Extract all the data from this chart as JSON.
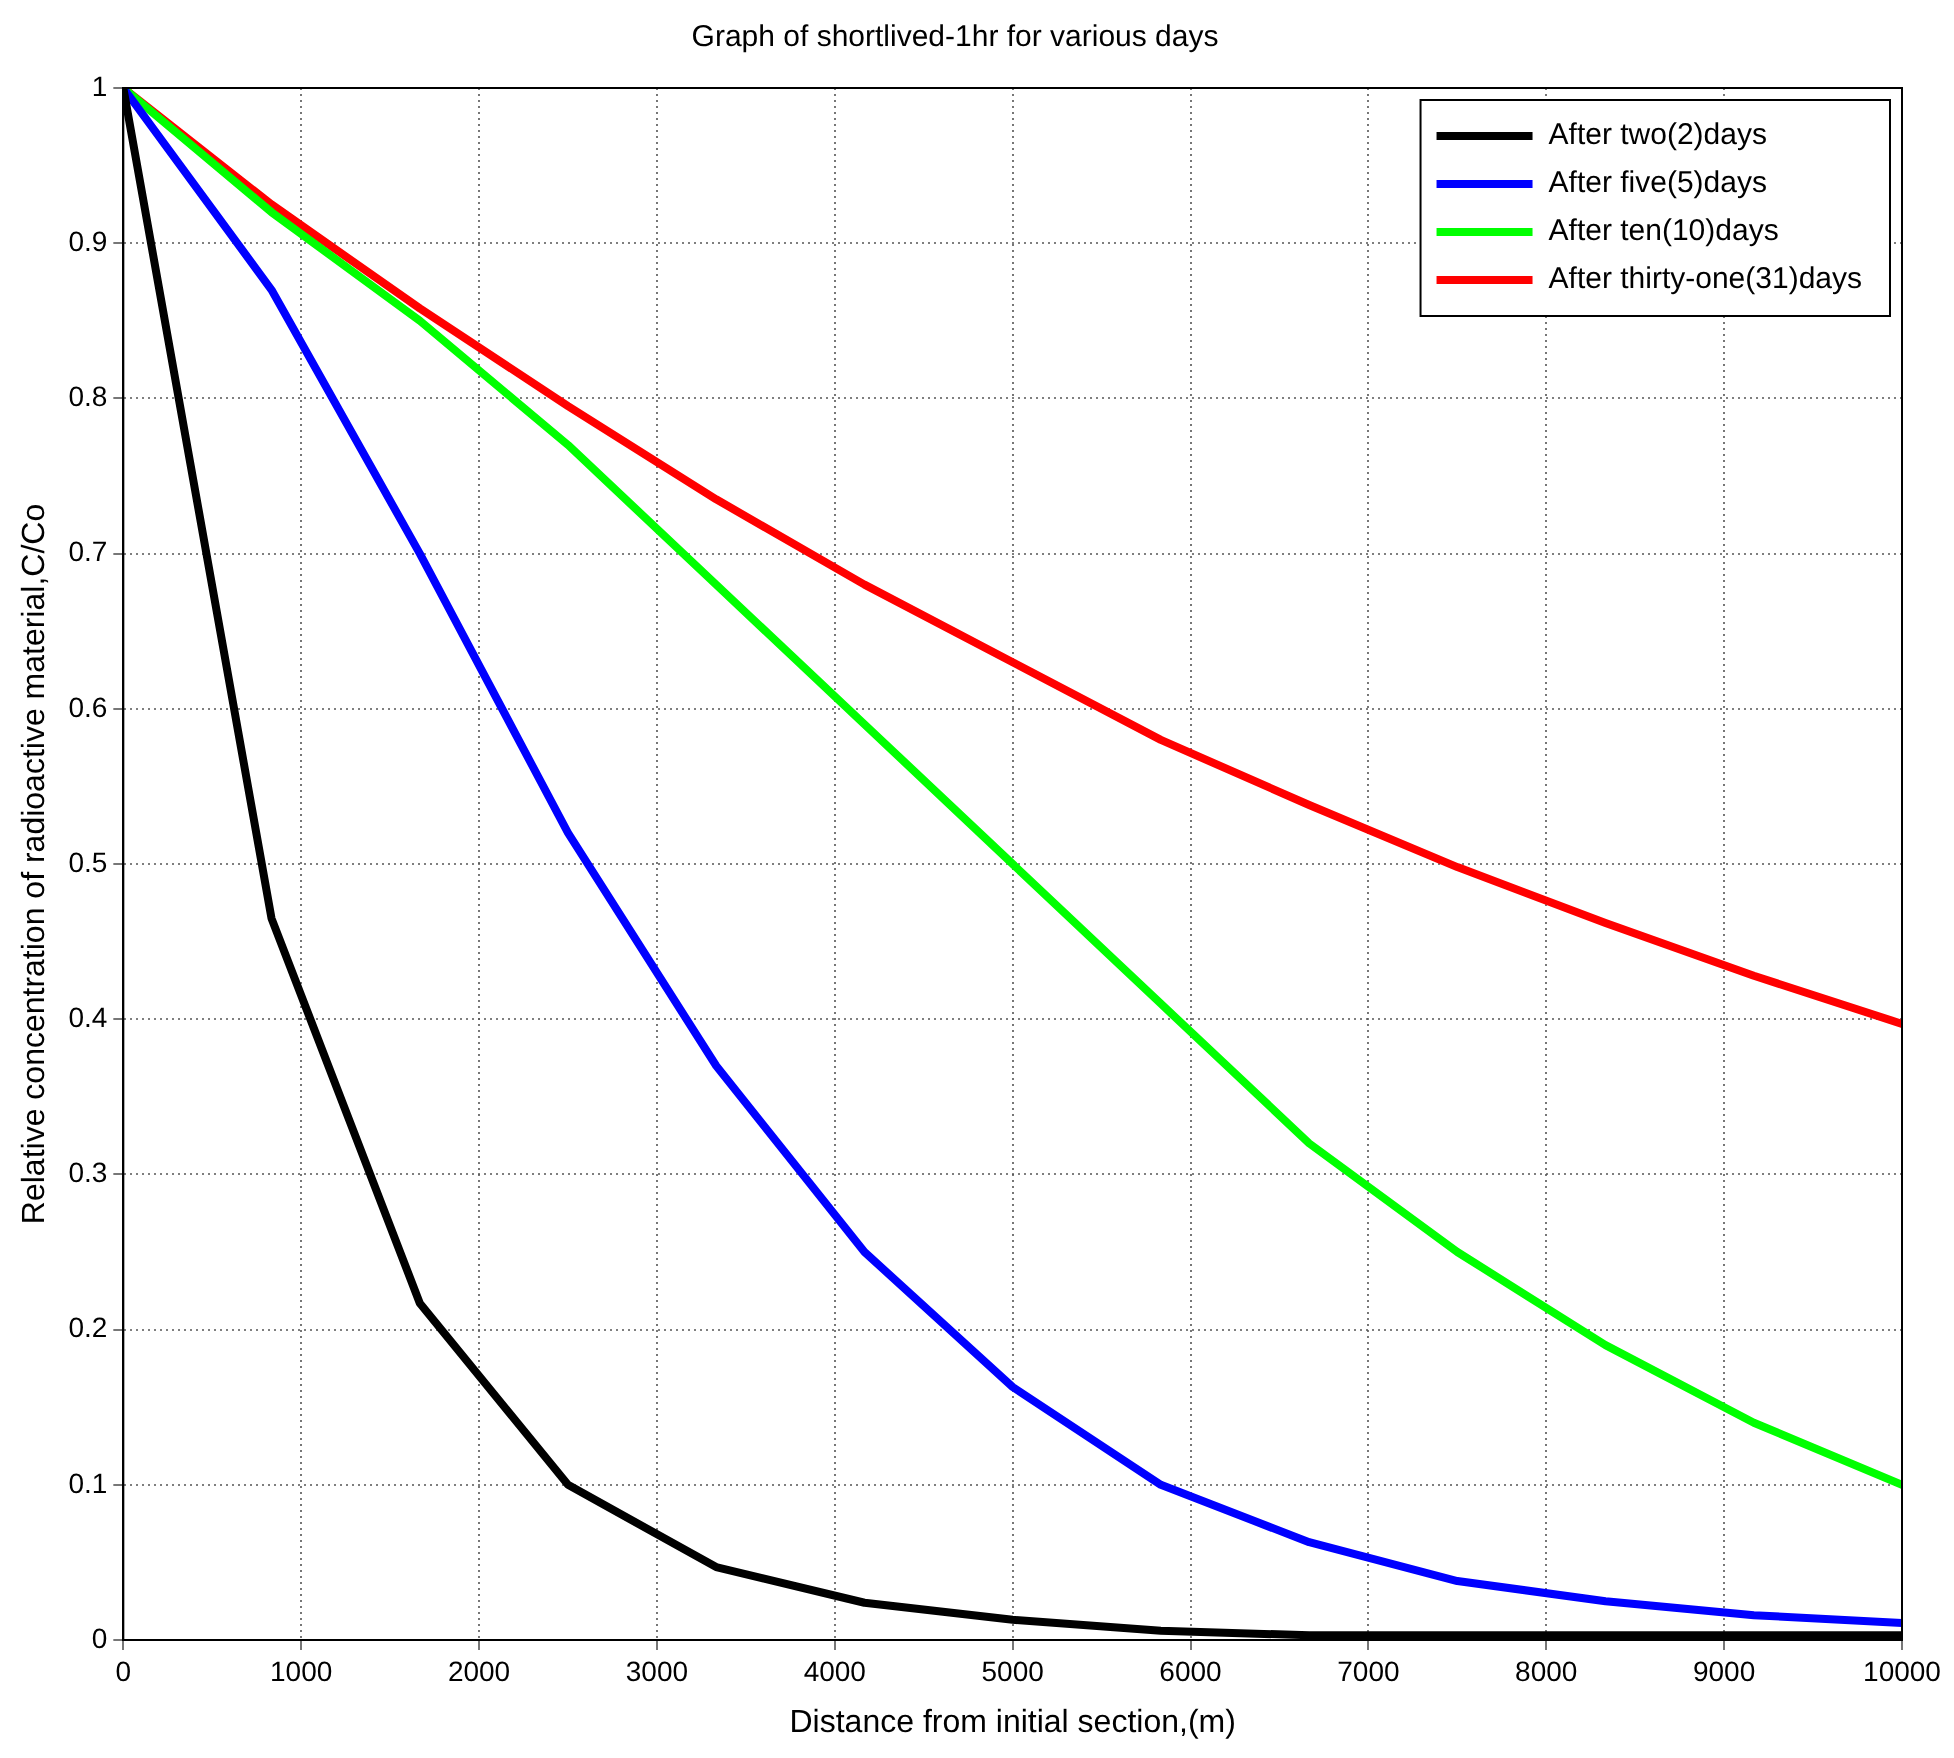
{
  "chart_data": {
    "type": "line",
    "title": "Graph of shortlived-1hr for various days",
    "xlabel": "Distance from initial section,(m)",
    "ylabel": "Relative concentration of radioactive material,C/Co",
    "x": [
      0,
      833,
      1667,
      2500,
      3333,
      4167,
      5000,
      5833,
      6667,
      7500,
      8333,
      9167,
      10000
    ],
    "series": [
      {
        "name": "After two(2)days",
        "color": "#000000",
        "values": [
          1,
          0.465,
          0.217,
          0.1,
          0.047,
          0.024,
          0.013,
          0.006,
          0.003,
          0.003,
          0.003,
          0.003,
          0.003
        ]
      },
      {
        "name": "After five(5)days",
        "color": "#0000ff",
        "values": [
          1,
          0.87,
          0.7,
          0.52,
          0.37,
          0.25,
          0.163,
          0.1,
          0.063,
          0.038,
          0.025,
          0.016,
          0.011
        ]
      },
      {
        "name": "After ten(10)days",
        "color": "#00ff00",
        "values": [
          1,
          0.92,
          0.85,
          0.77,
          0.68,
          0.59,
          0.5,
          0.41,
          0.32,
          0.25,
          0.19,
          0.14,
          0.1
        ]
      },
      {
        "name": "After thirty-one(31)days",
        "color": "#ff0000",
        "values": [
          1,
          0.925,
          0.858,
          0.795,
          0.735,
          0.68,
          0.63,
          0.58,
          0.538,
          0.498,
          0.462,
          0.428,
          0.397
        ]
      }
    ],
    "xlim": [
      0,
      10000
    ],
    "xticks": [
      0,
      1000,
      2000,
      3000,
      4000,
      5000,
      6000,
      7000,
      8000,
      9000,
      10000
    ],
    "ylim": [
      0,
      1
    ],
    "yticks": [
      0,
      0.1,
      0.2,
      0.3,
      0.4,
      0.5,
      0.6,
      0.7,
      0.8,
      0.9,
      1
    ],
    "grid": true,
    "legend": "top right",
    "marker": "none",
    "line_style": "solid"
  }
}
